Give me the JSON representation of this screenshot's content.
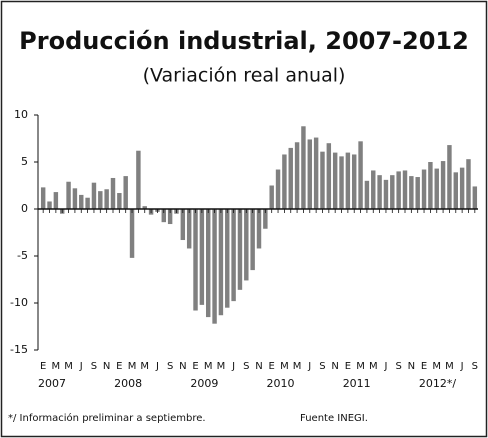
{
  "chart_data": {
    "type": "bar",
    "title": "Producción industrial, 2007-2012",
    "subtitle": "(Variación real anual)",
    "categories": [
      "E",
      null,
      "M",
      null,
      "M",
      null,
      "J",
      null,
      "S",
      null,
      "N",
      null,
      "E",
      null,
      "M",
      null,
      "M",
      null,
      "J",
      null,
      "S",
      null,
      "N",
      null,
      "E",
      null,
      "M",
      null,
      "M",
      null,
      "J",
      null,
      "S",
      null,
      "N",
      null,
      "E",
      null,
      "M",
      null,
      "M",
      null,
      "J",
      null,
      "S",
      null,
      "N",
      null,
      "E",
      null,
      "M",
      null,
      "M",
      null,
      "J",
      null,
      "S",
      null,
      "N",
      null,
      "E",
      null,
      "M",
      null,
      "M",
      null,
      "J",
      null,
      "S"
    ],
    "values": [
      2.3,
      0.8,
      1.8,
      -0.5,
      2.9,
      2.2,
      1.5,
      1.2,
      2.8,
      1.9,
      2.1,
      3.3,
      1.7,
      3.5,
      -5.2,
      6.2,
      0.3,
      -0.6,
      -0.3,
      -1.4,
      -1.6,
      -0.5,
      -3.3,
      -4.2,
      -10.8,
      -10.2,
      -11.5,
      -12.2,
      -11.3,
      -10.5,
      -9.8,
      -8.6,
      -7.6,
      -6.5,
      -4.2,
      -2.1,
      2.5,
      4.2,
      5.8,
      6.5,
      7.1,
      8.8,
      7.4,
      7.6,
      6.1,
      7.0,
      6.0,
      5.6,
      6.0,
      5.8,
      7.2,
      3.0,
      4.1,
      3.6,
      3.1,
      3.6,
      4.0,
      4.1,
      3.5,
      3.4,
      4.2,
      5.0,
      4.3,
      5.1,
      6.8,
      3.9,
      4.4,
      5.3,
      2.4
    ],
    "years": [
      "2007",
      "2008",
      "2009",
      "2010",
      "2011",
      "2012*/"
    ],
    "color": "#555555",
    "ylim": [
      -15,
      10
    ],
    "yticks": [
      -15,
      -10,
      -5,
      0,
      5,
      10
    ],
    "grid": false,
    "footnote": "*/ Información preliminar  a septiembre.",
    "source": "Fuente  INEGI."
  }
}
